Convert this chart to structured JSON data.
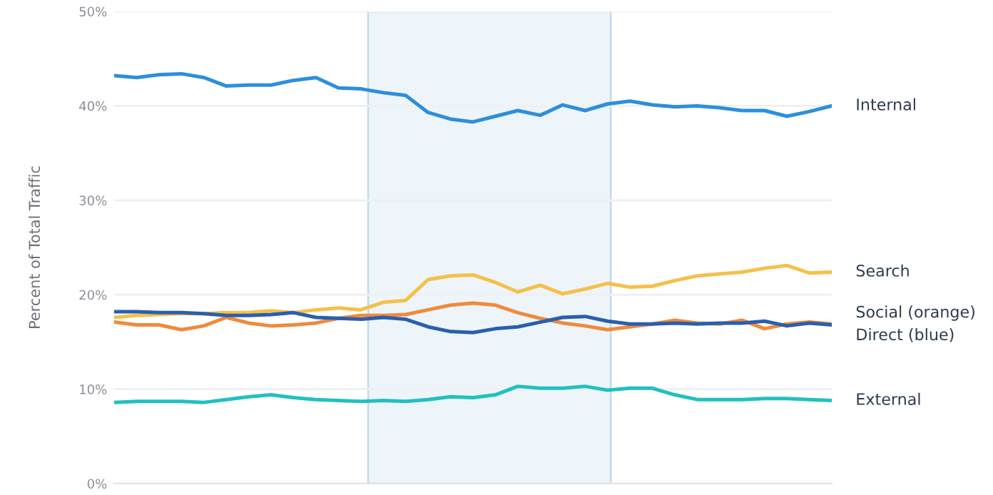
{
  "chart_data": {
    "type": "line",
    "ylabel": "Percent of Total Traffic",
    "categories": [
      null,
      null,
      null,
      null,
      null,
      null,
      null,
      null,
      null,
      null,
      null,
      null,
      null,
      null,
      null,
      null,
      null,
      null,
      null,
      null,
      null,
      null,
      null,
      null,
      null,
      null,
      null,
      null,
      null,
      null,
      null,
      null,
      null
    ],
    "ylim": [
      0,
      50
    ],
    "yticks": [
      {
        "value": 0,
        "label": "0%"
      },
      {
        "value": 10,
        "label": "10%"
      },
      {
        "value": 20,
        "label": "20%"
      },
      {
        "value": 30,
        "label": "30%"
      },
      {
        "value": 40,
        "label": "40%"
      },
      {
        "value": 50,
        "label": "50%"
      }
    ],
    "tick_labels": "y",
    "grid": "y",
    "legend": false,
    "series": [
      {
        "name": "Internal",
        "color": "#2d8fdc",
        "values": [
          43.2,
          43.0,
          43.3,
          43.4,
          43.0,
          42.1,
          42.2,
          42.2,
          42.7,
          43.0,
          41.9,
          41.8,
          41.4,
          41.1,
          39.3,
          38.6,
          38.3,
          38.9,
          39.5,
          39.0,
          40.1,
          39.5,
          40.2,
          40.5,
          40.1,
          39.9,
          40.0,
          39.8,
          39.5,
          39.5,
          38.9,
          39.4,
          40.0
        ]
      },
      {
        "name": "Search",
        "color": "#f5c04a",
        "values": [
          17.6,
          17.8,
          17.9,
          18.0,
          18.0,
          18.1,
          18.1,
          18.3,
          18.1,
          18.4,
          18.6,
          18.4,
          19.2,
          19.4,
          21.6,
          22.0,
          22.1,
          21.3,
          20.3,
          21.0,
          20.1,
          20.6,
          21.2,
          20.8,
          20.9,
          21.5,
          22.0,
          22.2,
          22.4,
          22.8,
          23.1,
          22.3,
          22.4
        ]
      },
      {
        "name": "Social (orange)",
        "color": "#f08a3c",
        "values": [
          17.1,
          16.8,
          16.8,
          16.3,
          16.7,
          17.6,
          17.0,
          16.7,
          16.8,
          17.0,
          17.5,
          17.8,
          17.8,
          17.9,
          18.4,
          18.9,
          19.1,
          18.9,
          18.1,
          17.5,
          17.0,
          16.7,
          16.3,
          16.6,
          16.9,
          17.3,
          17.0,
          16.9,
          17.3,
          16.4,
          16.9,
          17.1,
          16.9
        ]
      },
      {
        "name": "Direct (blue)",
        "color": "#2a5fae",
        "values": [
          18.2,
          18.2,
          18.1,
          18.1,
          18.0,
          17.8,
          17.8,
          17.9,
          18.1,
          17.6,
          17.5,
          17.4,
          17.6,
          17.4,
          16.6,
          16.1,
          16.0,
          16.4,
          16.6,
          17.1,
          17.6,
          17.7,
          17.2,
          16.9,
          16.9,
          17.0,
          16.9,
          17.0,
          17.0,
          17.2,
          16.7,
          17.0,
          16.8
        ]
      },
      {
        "name": "External",
        "color": "#22c0c0",
        "values": [
          8.6,
          8.7,
          8.7,
          8.7,
          8.6,
          8.9,
          9.2,
          9.4,
          9.1,
          8.9,
          8.8,
          8.7,
          8.8,
          8.7,
          8.9,
          9.2,
          9.1,
          9.4,
          10.3,
          10.1,
          10.1,
          10.3,
          9.9,
          10.1,
          10.1,
          9.4,
          8.9,
          8.9,
          8.9,
          9.0,
          9.0,
          8.9,
          8.8
        ]
      }
    ]
  }
}
